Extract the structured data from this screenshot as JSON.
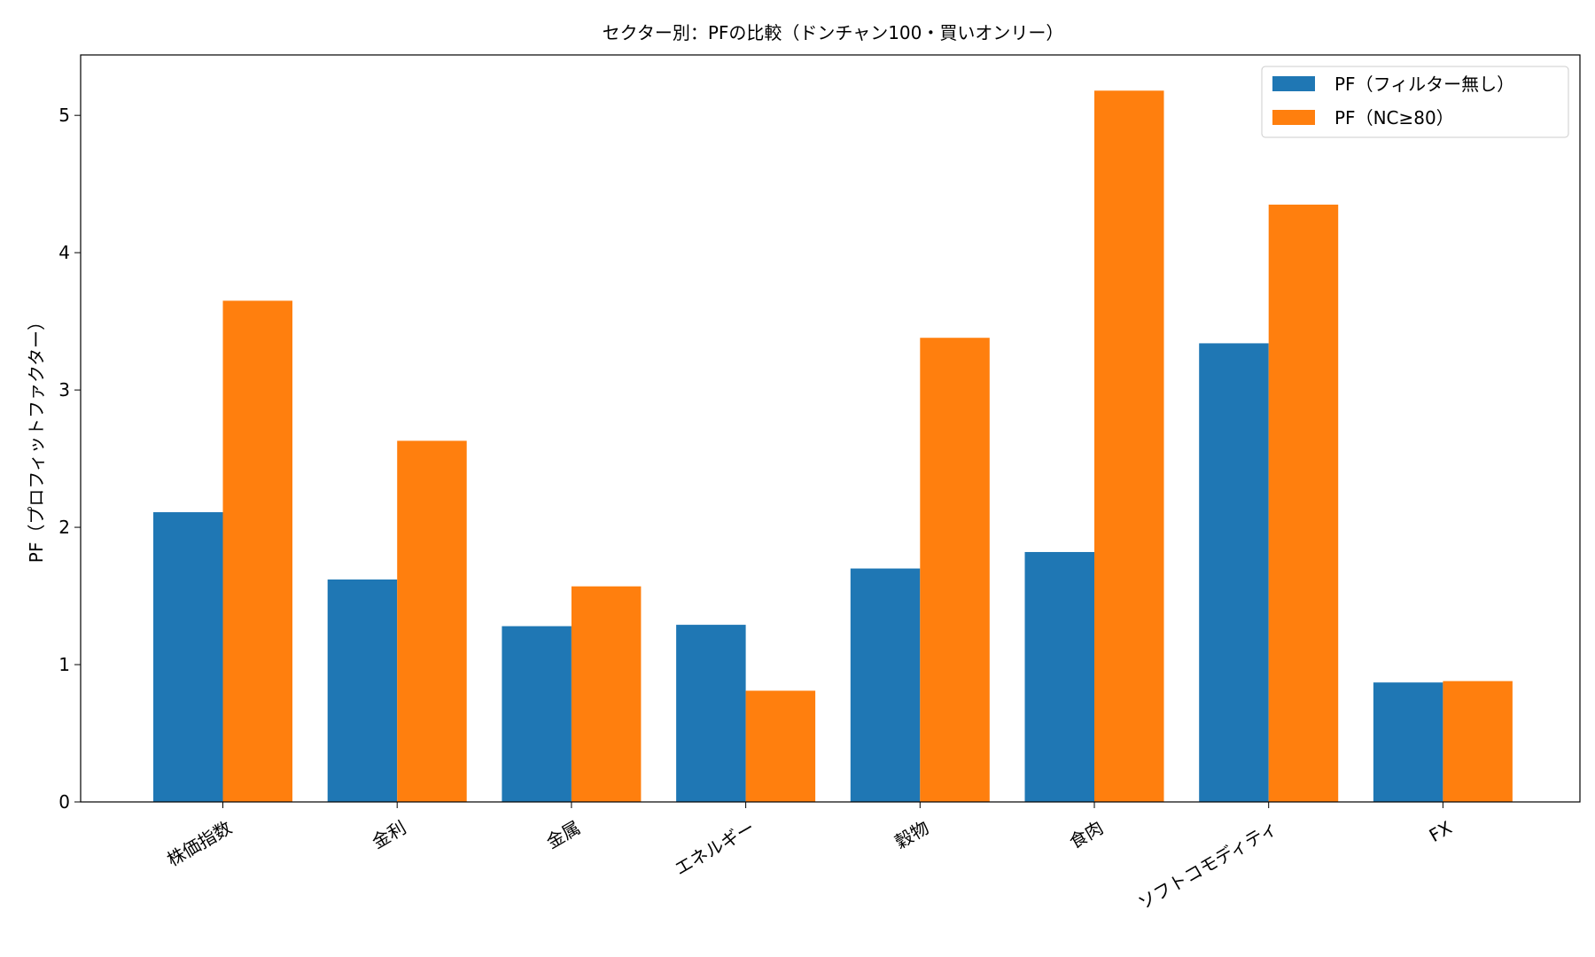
{
  "chart_data": {
    "type": "bar",
    "title": "セクター別：PFの比較（ドンチャン100・買いオンリー）",
    "xlabel": "",
    "ylabel": "PF（プロフィットファクター）",
    "categories": [
      "株価指数",
      "金利",
      "金属",
      "エネルギー",
      "穀物",
      "食肉",
      "ソフトコモディティ",
      "FX"
    ],
    "series": [
      {
        "name": "PF（フィルター無し）",
        "color": "#1f77b4",
        "values": [
          2.11,
          1.62,
          1.28,
          1.29,
          1.7,
          1.82,
          3.34,
          0.87
        ]
      },
      {
        "name": "PF（NC≥80）",
        "color": "#ff7f0e",
        "values": [
          3.65,
          2.63,
          1.57,
          0.81,
          3.38,
          5.18,
          4.35,
          0.88
        ]
      }
    ],
    "ylim": [
      0,
      5.44
    ],
    "yticks": [
      0,
      1,
      2,
      3,
      4,
      5
    ],
    "grid": false,
    "legend_position": "top-right"
  }
}
